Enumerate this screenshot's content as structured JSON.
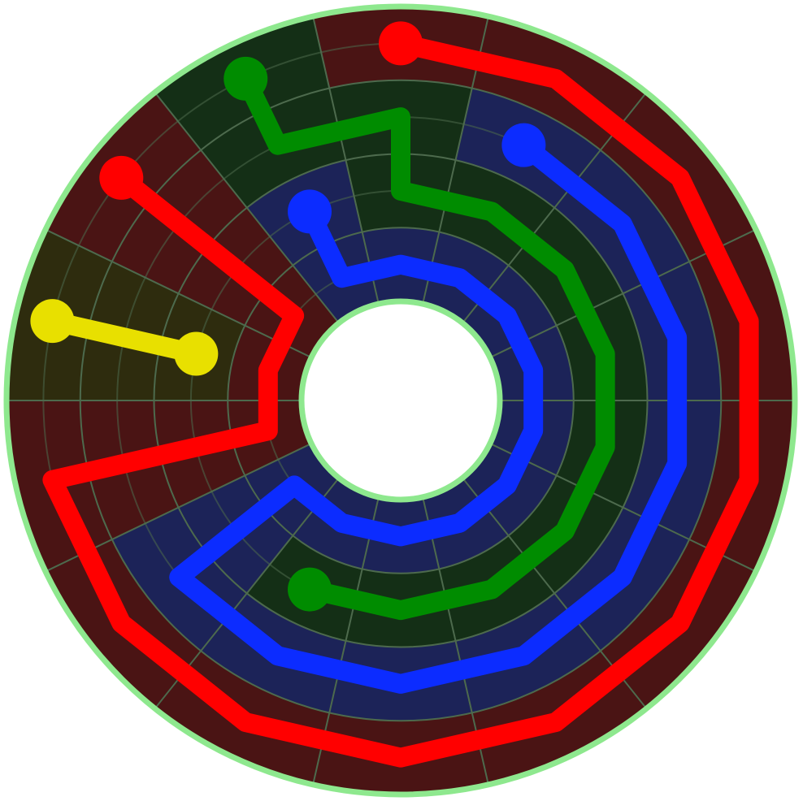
{
  "grid": {
    "rings": 4,
    "sectors": 14
  },
  "flows": [
    {
      "color": "#ff0000",
      "cell_color": "#4a1414",
      "cells": [
        [
          3,
          10
        ],
        [
          3,
          11
        ],
        [
          3,
          12
        ],
        [
          3,
          13
        ],
        [
          3,
          0
        ],
        [
          3,
          1
        ],
        [
          3,
          2
        ],
        [
          3,
          3
        ],
        [
          3,
          4
        ],
        [
          3,
          5
        ],
        [
          3,
          6
        ],
        [
          2,
          6
        ],
        [
          1,
          6
        ],
        [
          0,
          6
        ],
        [
          0,
          7
        ],
        [
          0,
          8
        ],
        [
          1,
          8
        ],
        [
          2,
          8
        ],
        [
          3,
          8
        ]
      ]
    },
    {
      "color": "#e8e000",
      "cell_color": "#2e2c0e",
      "cells": [
        [
          3,
          7
        ],
        [
          2,
          7
        ],
        [
          1,
          7
        ]
      ]
    },
    {
      "color": "#008c00",
      "cell_color": "#142f16",
      "cells": [
        [
          3,
          9
        ],
        [
          2,
          9
        ],
        [
          2,
          10
        ],
        [
          1,
          10
        ],
        [
          1,
          11
        ],
        [
          1,
          12
        ],
        [
          1,
          13
        ],
        [
          1,
          0
        ],
        [
          1,
          1
        ],
        [
          1,
          2
        ],
        [
          1,
          3
        ],
        [
          1,
          4
        ]
      ]
    },
    {
      "color": "#0c2cff",
      "cell_color": "#1c2358",
      "cells": [
        [
          2,
          11
        ],
        [
          2,
          12
        ],
        [
          2,
          13
        ],
        [
          2,
          0
        ],
        [
          2,
          1
        ],
        [
          2,
          2
        ],
        [
          2,
          3
        ],
        [
          2,
          4
        ],
        [
          2,
          5
        ],
        [
          1,
          5
        ],
        [
          0,
          5
        ],
        [
          0,
          4
        ],
        [
          0,
          3
        ],
        [
          0,
          2
        ],
        [
          0,
          1
        ],
        [
          0,
          0
        ],
        [
          0,
          13
        ],
        [
          0,
          12
        ],
        [
          0,
          11
        ],
        [
          0,
          10
        ],
        [
          0,
          9
        ],
        [
          1,
          9
        ]
      ]
    }
  ]
}
